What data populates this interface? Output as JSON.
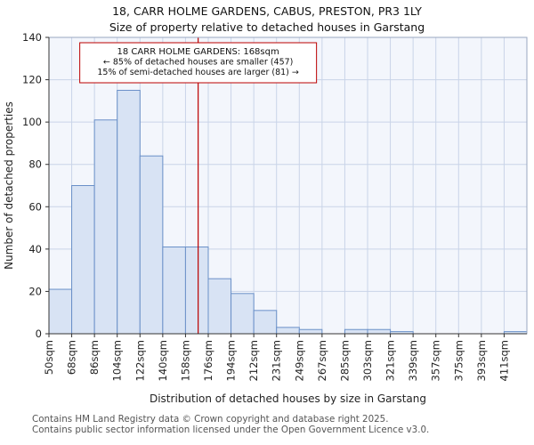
{
  "chart_data": {
    "type": "bar",
    "title": "18, CARR HOLME GARDENS, CABUS, PRESTON, PR3 1LY",
    "subtitle": "Size of property relative to detached houses in Garstang",
    "categories": [
      "50sqm",
      "68sqm",
      "86sqm",
      "104sqm",
      "122sqm",
      "140sqm",
      "158sqm",
      "176sqm",
      "194sqm",
      "212sqm",
      "231sqm",
      "249sqm",
      "267sqm",
      "285sqm",
      "303sqm",
      "321sqm",
      "339sqm",
      "357sqm",
      "375sqm",
      "393sqm",
      "411sqm"
    ],
    "values": [
      21,
      70,
      101,
      115,
      84,
      41,
      41,
      26,
      19,
      11,
      3,
      2,
      0,
      2,
      2,
      1,
      0,
      0,
      0,
      0,
      1
    ],
    "xlabel": "Distribution of detached houses by size in Garstang",
    "ylabel": "Number of detached properties",
    "ylim": [
      0,
      140
    ],
    "yticks": [
      0,
      20,
      40,
      60,
      80,
      100,
      120,
      140
    ],
    "bin_start": 50,
    "bin_step": 18,
    "grid": true,
    "marker": {
      "value_sqm": 168,
      "color": "#bb0000",
      "label_lines": [
        "18 CARR HOLME GARDENS: 168sqm",
        "← 85% of detached houses are smaller (457)",
        "15% of semi-detached houses are larger (81) →"
      ]
    },
    "colors": {
      "bar_fill": "#d8e3f4",
      "bar_stroke": "#6a90c8",
      "grid": "#c9d4e8",
      "plot_bg": "#f3f6fc",
      "axis": "#333333",
      "border": "#9aa7c0"
    }
  },
  "footer": {
    "line1": "Contains HM Land Registry data © Crown copyright and database right 2025.",
    "line2": "Contains public sector information licensed under the Open Government Licence v3.0."
  }
}
